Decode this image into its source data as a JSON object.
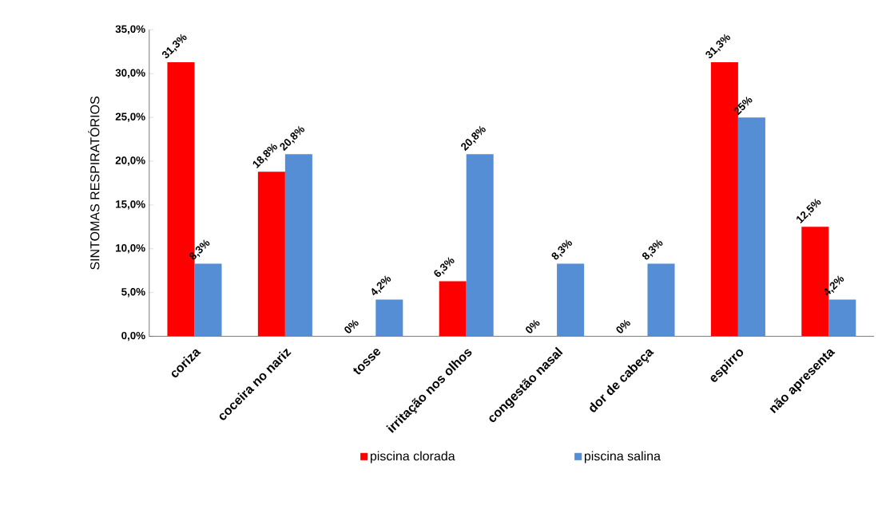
{
  "chart_data": {
    "type": "bar",
    "ylabel": "SINTOMAS RESPIRATÓRIOS",
    "categories": [
      "coriza",
      "coceira no nariz",
      "tosse",
      "irritação nos olhos",
      "congestão nasal",
      "dor de cabeça",
      "espirro",
      "não apresenta"
    ],
    "series": [
      {
        "name": "piscina clorada",
        "color": "#ff0000",
        "values": [
          31.3,
          18.8,
          0,
          6.3,
          0,
          0,
          31.3,
          12.5
        ],
        "value_labels": [
          "31,3%",
          "18,8%",
          "0%",
          "6,3%",
          "0%",
          "0%",
          "31,3%",
          "12,5%"
        ]
      },
      {
        "name": "piscina salina",
        "color": "#558ed5",
        "values": [
          8.3,
          20.8,
          4.2,
          20.8,
          8.3,
          8.3,
          25,
          4.2
        ],
        "value_labels": [
          "8,3%",
          "20,8%",
          "4,2%",
          "20,8%",
          "8,3%",
          "8,3%",
          "25%",
          "4,2%"
        ]
      }
    ],
    "ylim": [
      0,
      35
    ],
    "yticks": [
      {
        "value": 0,
        "label": "0,0%"
      },
      {
        "value": 5,
        "label": "5,0%"
      },
      {
        "value": 10,
        "label": "10,0%"
      },
      {
        "value": 15,
        "label": "15,0%"
      },
      {
        "value": 20,
        "label": "20,0%"
      },
      {
        "value": 25,
        "label": "25,0%"
      },
      {
        "value": 30,
        "label": "30,0%"
      },
      {
        "value": 35,
        "label": "35,0%"
      }
    ],
    "grid": false,
    "legend": "bottom"
  }
}
